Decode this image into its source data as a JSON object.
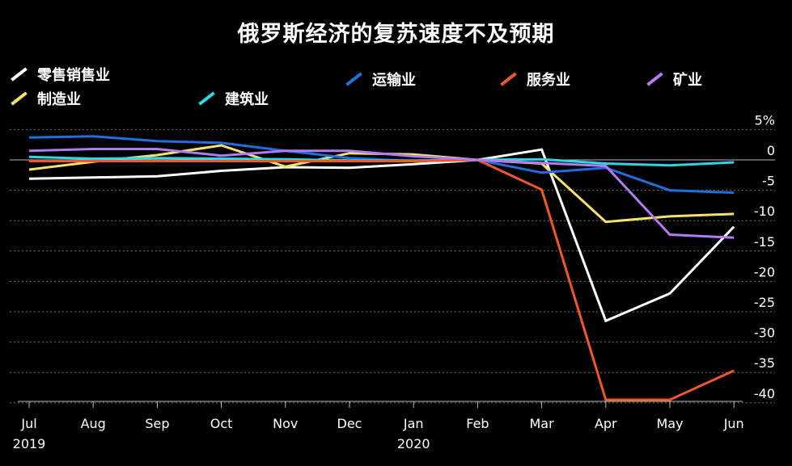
{
  "chart_data": {
    "type": "line",
    "title": "俄罗斯经济的复苏速度不及预期",
    "x": [
      "Jul",
      "Aug",
      "Sep",
      "Oct",
      "Nov",
      "Dec",
      "Jan",
      "Feb",
      "Mar",
      "Apr",
      "May",
      "Jun"
    ],
    "x_year_labels": [
      {
        "under": "Jul",
        "text": "2019"
      },
      {
        "under": "Jan",
        "text": "2020"
      }
    ],
    "y_ticks": [
      5,
      0,
      -5,
      -10,
      -15,
      -20,
      -25,
      -30,
      -35,
      -40
    ],
    "y_tick_labels": [
      "5%",
      "0",
      "-5",
      "-10",
      "-15",
      "-20",
      "-25",
      "-30",
      "-35",
      "-40"
    ],
    "ylim": [
      -42,
      7
    ],
    "grid": true,
    "series": [
      {
        "name": "零售销售业",
        "color": "#ffffff",
        "values": [
          -3.1,
          -2.9,
          -2.7,
          -1.8,
          -1.2,
          -1.3,
          -0.7,
          0,
          1.7,
          -26.5,
          -22,
          -11
        ]
      },
      {
        "name": "制造业",
        "color": "#f3e26b",
        "values": [
          -1.6,
          -0.3,
          0.8,
          2.4,
          -1.1,
          1.1,
          0.9,
          0,
          -0.6,
          -10.2,
          -9.3,
          -8.9
        ]
      },
      {
        "name": "运输业",
        "color": "#1f6fe0",
        "values": [
          3.7,
          3.9,
          3.1,
          2.8,
          1.5,
          0.3,
          -0.2,
          0,
          -2.1,
          -1.3,
          -5.0,
          -5.4
        ]
      },
      {
        "name": "建筑业",
        "color": "#2fd6e6",
        "values": [
          0.5,
          0.2,
          0.3,
          0.2,
          0.1,
          -0.1,
          -0.1,
          0,
          0.1,
          -0.6,
          -0.9,
          -0.4
        ]
      },
      {
        "name": "服务业",
        "color": "#f0582a",
        "values": [
          -0.2,
          -0.2,
          -0.2,
          -0.2,
          -0.2,
          -0.2,
          -0.2,
          0,
          -4.9,
          -39.5,
          -39.5,
          -34.7
        ]
      },
      {
        "name": "矿业",
        "color": "#b27bf0",
        "values": [
          1.5,
          1.8,
          1.8,
          0.7,
          1.5,
          1.5,
          0.6,
          0,
          -0.5,
          -1.0,
          -12.3,
          -12.8
        ]
      }
    ]
  },
  "legend": [
    {
      "label": "零售销售业",
      "color": "#ffffff"
    },
    {
      "label": "运输业",
      "color": "#1f6fe0"
    },
    {
      "label": "服务业",
      "color": "#f0582a"
    },
    {
      "label": "矿业",
      "color": "#b27bf0"
    },
    {
      "label": "制造业",
      "color": "#f3e26b"
    },
    {
      "label": "建筑业",
      "color": "#2fd6e6"
    }
  ],
  "colors": {
    "background": "#000000",
    "grid": "#777777",
    "zero_line": "#bbbbbb",
    "axis_text": "#ffffff"
  }
}
